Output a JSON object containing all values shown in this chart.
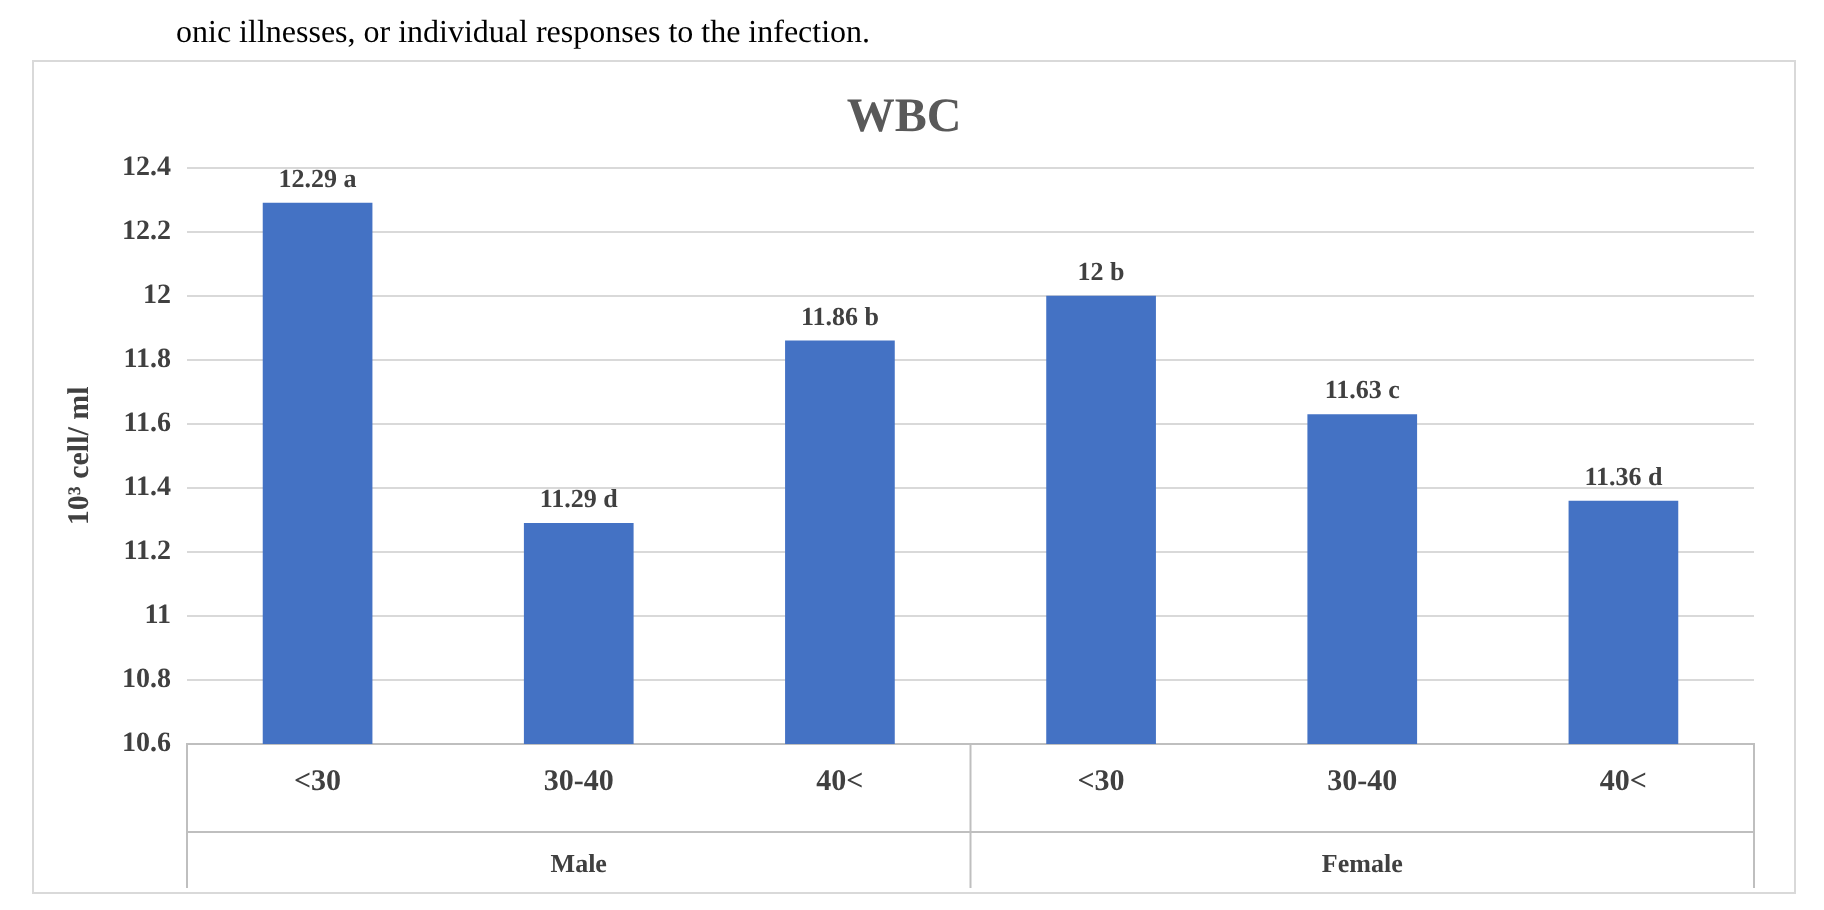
{
  "chart_data": {
    "type": "bar",
    "title": "WBC",
    "ylabel": "10³ cell/ ml",
    "categories": [
      "<30",
      "30-40",
      "40<",
      "<30",
      "30-40",
      "40<"
    ],
    "values": [
      12.29,
      11.29,
      11.86,
      12,
      11.63,
      11.36
    ],
    "value_labels": [
      "12.29 a",
      "11.29 d",
      "11.86 b",
      "12 b",
      "11.63 c",
      "11.36 d"
    ],
    "color": "#4472c4",
    "ylim": [
      10.6,
      12.4
    ],
    "yticks": [
      10.6,
      10.8,
      11,
      11.2,
      11.4,
      11.6,
      11.8,
      12,
      12.2,
      12.4
    ],
    "grid": "y",
    "annotations": [
      "onic illnesses, or individual responses to the infection.",
      "Male",
      "Female"
    ]
  }
}
